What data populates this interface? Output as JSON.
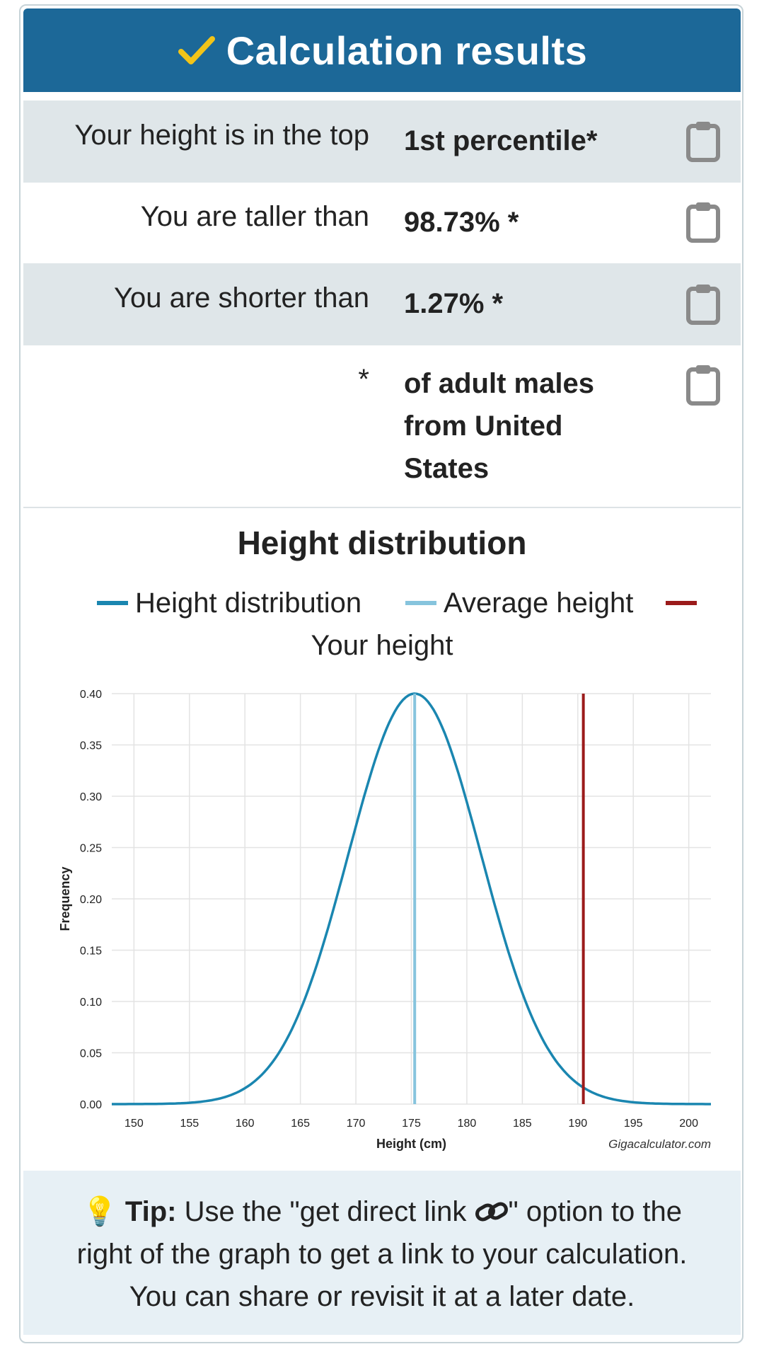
{
  "header": {
    "title": "Calculation results",
    "accent_color": "#1c6898",
    "check_color": "#f2c418"
  },
  "results": [
    {
      "label": "Your height is in the top",
      "value": "1st percentile*"
    },
    {
      "label": "You are taller than",
      "value": "98.73% *"
    },
    {
      "label": "You are shorter than",
      "value": "1.27% *"
    },
    {
      "label": "*",
      "value_lines": [
        "of adult males",
        "from United",
        "States"
      ]
    }
  ],
  "chart_section": {
    "title": "Height distribution",
    "legend": [
      {
        "name": "Height distribution",
        "color": "#1a86b0"
      },
      {
        "name": "Average height",
        "color": "#86c4dd"
      },
      {
        "name": "Your height",
        "color": "#9b1b1b"
      }
    ],
    "watermark": "Gigacalculator.com"
  },
  "chart_data": {
    "type": "line",
    "title": "Height distribution",
    "xlabel": "Height (cm)",
    "ylabel": "Frequency",
    "xlim": [
      148,
      202
    ],
    "ylim": [
      0,
      0.4
    ],
    "x_ticks": [
      150,
      155,
      160,
      165,
      170,
      175,
      180,
      185,
      190,
      195,
      200
    ],
    "y_ticks": [
      "0.00",
      "0.05",
      "0.10",
      "0.15",
      "0.20",
      "0.25",
      "0.30",
      "0.35",
      "0.40"
    ],
    "grid": true,
    "legend_position": "top",
    "series": [
      {
        "name": "Height distribution",
        "x": [
          148,
          150,
          155,
          157.5,
          160,
          162.5,
          165,
          167.5,
          170,
          172.5,
          175.3,
          178,
          180,
          182.5,
          185,
          187.5,
          190,
          192.5,
          195,
          200,
          202
        ],
        "y": [
          0.0001,
          0.0005,
          0.0052,
          0.0139,
          0.0324,
          0.0656,
          0.1158,
          0.1782,
          0.2401,
          0.2956,
          0.4,
          0.3528,
          0.2874,
          0.2063,
          0.1301,
          0.0719,
          0.0348,
          0.0147,
          0.0054,
          0.0005,
          0.0001
        ]
      },
      {
        "name": "Average height",
        "x": [
          175.3,
          175.3
        ],
        "y": [
          0,
          0.4
        ]
      },
      {
        "name": "Your height",
        "x": [
          190.5,
          190.5
        ],
        "y": [
          0,
          0.4
        ]
      }
    ]
  },
  "tip": {
    "prefix": "Tip:",
    "text_before_icon": " Use the \"get direct link ",
    "text_after_icon": "\" option to the right of the graph to get a link to your calculation. You can share or revisit it at a later date."
  }
}
